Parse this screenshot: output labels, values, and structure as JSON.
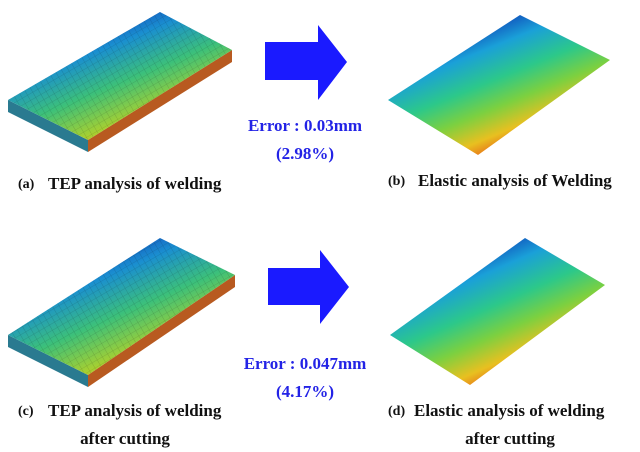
{
  "panels": [
    {
      "label": "(a)",
      "caption": [
        "TEP analysis of welding"
      ]
    },
    {
      "label": "(b)",
      "caption": [
        "Elastic analysis of Welding"
      ]
    },
    {
      "label": "(c)",
      "caption": [
        "TEP analysis of welding",
        "after cutting"
      ]
    },
    {
      "label": "(d)",
      "caption": [
        "Elastic analysis of welding",
        "after cutting"
      ]
    }
  ],
  "errors": [
    {
      "error": "Error : 0.03mm",
      "percent": "(2.98%)"
    },
    {
      "error": "Error : 0.047mm",
      "percent": "(4.17%)"
    }
  ]
}
